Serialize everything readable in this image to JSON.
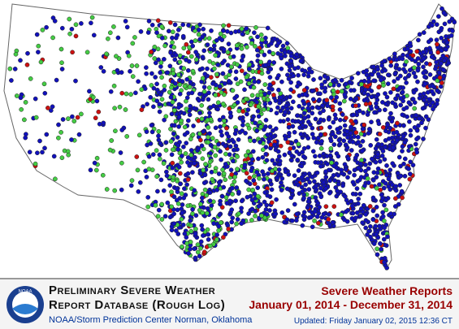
{
  "header": {
    "title_line1": "Preliminary Severe Weather",
    "title_line2": "Report Database (Rough Log)",
    "organization": "NOAA/Storm Prediction Center",
    "location": "Norman, Oklahoma",
    "logo_text": "NOAA"
  },
  "summary": {
    "title": "Severe Weather Reports",
    "date_range": "January 01, 2014 - December 31, 2014",
    "updated": "Updated:  Friday January 02, 2015 12:36 CT"
  }
}
